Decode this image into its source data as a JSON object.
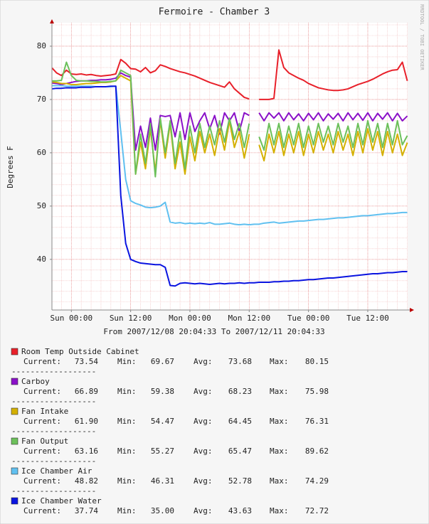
{
  "chart_data": {
    "type": "line",
    "title": "Fermoire - Chamber 3",
    "subtitle": "From 2007/12/08 20:04:33 To 2007/12/11 20:04:33",
    "y_label": "Degrees F",
    "watermark": "RRDTOOL / TOBI OETIKER",
    "separator": "------------------",
    "stat_labels": [
      "Current:",
      "Min:",
      "Avg:",
      "Max:"
    ],
    "grid": true,
    "xlim": [
      -3.93,
      68.07
    ],
    "ylim": [
      30.5,
      84.4
    ],
    "xticks": [
      {
        "value": 0,
        "label": "Sun 00:00"
      },
      {
        "value": 12,
        "label": "Sun 12:00"
      },
      {
        "value": 24,
        "label": "Mon 00:00"
      },
      {
        "value": 36,
        "label": "Mon 12:00"
      },
      {
        "value": 48,
        "label": "Tue 00:00"
      },
      {
        "value": 60,
        "label": "Tue 12:00"
      }
    ],
    "yticks": [
      40,
      50,
      60,
      70,
      80
    ],
    "x": [
      -3.9,
      -3,
      -2,
      -1,
      0,
      1,
      2,
      3,
      4,
      5,
      6,
      7,
      8,
      9,
      10,
      11,
      12,
      13,
      14,
      15,
      16,
      17,
      18,
      19,
      20,
      21,
      22,
      23,
      24,
      25,
      26,
      27,
      28,
      29,
      30,
      31,
      32,
      33,
      34,
      35,
      36,
      37,
      38,
      39,
      40,
      41,
      42,
      43,
      44,
      45,
      46,
      47,
      48,
      49,
      50,
      51,
      52,
      53,
      54,
      55,
      56,
      57,
      58,
      59,
      60,
      61,
      62,
      63,
      64,
      65,
      66,
      67,
      68
    ],
    "series": [
      {
        "name": "Room Temp Outside Cabinet",
        "color": "#e8202a",
        "stats": [
          "73.54",
          "69.67",
          "73.68",
          "80.15"
        ],
        "values": [
          75.9,
          75.0,
          74.5,
          75.5,
          74.8,
          74.7,
          74.8,
          74.6,
          74.7,
          74.5,
          74.4,
          74.5,
          74.6,
          74.8,
          77.5,
          76.8,
          75.8,
          75.7,
          75.2,
          76.0,
          75.0,
          75.4,
          76.5,
          76.2,
          75.8,
          75.5,
          75.2,
          75.0,
          74.7,
          74.4,
          74.0,
          73.6,
          73.2,
          72.9,
          72.6,
          72.3,
          73.3,
          72.0,
          71.2,
          70.4,
          70.1,
          null,
          70.0,
          70.0,
          70.0,
          70.2,
          79.3,
          76.0,
          75.0,
          74.5,
          74.0,
          73.6,
          73.0,
          72.6,
          72.2,
          72.0,
          71.8,
          71.7,
          71.7,
          71.8,
          72.0,
          72.4,
          72.8,
          73.1,
          73.4,
          73.8,
          74.3,
          74.8,
          75.2,
          75.5,
          75.6,
          77.0,
          73.5
        ]
      },
      {
        "name": "Carboy",
        "color": "#8a10c8",
        "stats": [
          "66.89",
          "59.38",
          "68.23",
          "75.98"
        ],
        "values": [
          73.1,
          73.0,
          72.8,
          73.0,
          73.2,
          73.4,
          73.5,
          73.5,
          73.6,
          73.6,
          73.7,
          73.7,
          73.8,
          74.0,
          75.0,
          74.5,
          74.2,
          60.5,
          65.0,
          61.0,
          66.5,
          60.5,
          67.0,
          66.8,
          67.0,
          63.0,
          67.5,
          62.5,
          67.5,
          64.0,
          66.0,
          67.5,
          64.5,
          67.0,
          63.5,
          67.5,
          66.0,
          67.5,
          64.0,
          67.5,
          67.0,
          null,
          67.5,
          66.0,
          67.5,
          66.5,
          67.5,
          66.0,
          67.5,
          66.2,
          67.3,
          66.0,
          67.4,
          66.2,
          67.5,
          66.0,
          67.3,
          66.3,
          67.4,
          66.0,
          67.5,
          66.2,
          67.4,
          66.1,
          67.5,
          66.0,
          67.4,
          66.3,
          67.5,
          66.0,
          67.4,
          66.0,
          66.9
        ]
      },
      {
        "name": "Fan Intake",
        "color": "#d4b000",
        "stats": [
          "61.90",
          "54.47",
          "64.45",
          "76.31"
        ],
        "values": [
          73.3,
          73.2,
          73.0,
          73.0,
          72.8,
          72.8,
          72.9,
          73.0,
          73.0,
          73.1,
          73.2,
          73.2,
          73.3,
          73.5,
          74.5,
          74.0,
          73.5,
          56.0,
          62.0,
          57.0,
          64.5,
          56.5,
          66.0,
          59.0,
          65.5,
          57.0,
          62.0,
          56.0,
          63.0,
          58.5,
          64.0,
          60.0,
          63.5,
          59.5,
          64.5,
          60.5,
          66.0,
          61.0,
          64.0,
          59.0,
          63.5,
          null,
          61.5,
          58.5,
          63.5,
          60.0,
          64.0,
          59.5,
          63.5,
          60.0,
          64.0,
          59.5,
          63.5,
          60.0,
          64.0,
          60.5,
          63.5,
          60.0,
          64.0,
          60.5,
          63.5,
          59.5,
          64.0,
          60.0,
          64.5,
          60.5,
          64.0,
          59.5,
          64.0,
          60.0,
          63.5,
          59.5,
          61.9
        ]
      },
      {
        "name": "Fan Output",
        "color": "#6cc05a",
        "stats": [
          "63.16",
          "55.27",
          "65.47",
          "89.62"
        ],
        "values": [
          73.5,
          73.5,
          73.6,
          77.0,
          74.5,
          73.6,
          73.5,
          73.5,
          73.4,
          73.4,
          73.3,
          73.3,
          73.4,
          73.5,
          75.5,
          75.0,
          74.5,
          56.0,
          63.5,
          58.0,
          65.5,
          55.5,
          66.5,
          60.0,
          66.0,
          58.0,
          64.0,
          57.0,
          65.0,
          60.0,
          65.5,
          61.0,
          65.0,
          61.5,
          66.0,
          62.0,
          66.5,
          62.5,
          65.5,
          61.0,
          65.5,
          null,
          63.0,
          60.5,
          65.5,
          61.5,
          65.5,
          61.0,
          65.0,
          61.5,
          65.5,
          61.0,
          65.0,
          61.5,
          65.5,
          62.0,
          65.0,
          61.5,
          65.5,
          62.0,
          65.0,
          61.0,
          65.5,
          61.5,
          66.0,
          62.0,
          65.5,
          61.0,
          65.5,
          61.5,
          66.0,
          61.5,
          63.2
        ]
      },
      {
        "name": "Ice Chamber Air",
        "color": "#60c0f0",
        "stats": [
          "48.82",
          "46.31",
          "52.78",
          "74.29"
        ],
        "values": [
          72.6,
          72.6,
          72.6,
          72.5,
          72.5,
          72.5,
          72.5,
          72.5,
          72.5,
          72.4,
          72.4,
          72.4,
          72.4,
          72.5,
          64.0,
          55.0,
          51.0,
          50.5,
          50.2,
          49.8,
          49.7,
          49.8,
          50.0,
          50.7,
          47.0,
          46.8,
          46.9,
          46.7,
          46.8,
          46.7,
          46.8,
          46.7,
          46.9,
          46.6,
          46.6,
          46.7,
          46.8,
          46.6,
          46.5,
          46.6,
          46.5,
          46.6,
          46.6,
          46.8,
          46.9,
          47.0,
          46.8,
          46.9,
          47.0,
          47.1,
          47.2,
          47.2,
          47.3,
          47.4,
          47.5,
          47.5,
          47.6,
          47.7,
          47.8,
          47.8,
          47.9,
          48.0,
          48.1,
          48.2,
          48.2,
          48.3,
          48.4,
          48.5,
          48.6,
          48.6,
          48.7,
          48.8,
          48.8
        ]
      },
      {
        "name": "Ice Chamber Water",
        "color": "#0a14e0",
        "stats": [
          "37.74",
          "35.00",
          "43.63",
          "72.72"
        ],
        "values": [
          72.0,
          72.1,
          72.1,
          72.2,
          72.2,
          72.2,
          72.3,
          72.3,
          72.3,
          72.4,
          72.4,
          72.4,
          72.5,
          72.5,
          52.0,
          43.0,
          40.0,
          39.6,
          39.3,
          39.2,
          39.1,
          39.0,
          39.0,
          38.5,
          35.1,
          35.0,
          35.5,
          35.6,
          35.5,
          35.4,
          35.5,
          35.4,
          35.3,
          35.4,
          35.5,
          35.4,
          35.5,
          35.5,
          35.6,
          35.5,
          35.6,
          35.6,
          35.7,
          35.7,
          35.7,
          35.8,
          35.8,
          35.9,
          35.9,
          36.0,
          36.0,
          36.1,
          36.2,
          36.2,
          36.3,
          36.4,
          36.5,
          36.5,
          36.6,
          36.7,
          36.8,
          36.9,
          37.0,
          37.1,
          37.2,
          37.3,
          37.3,
          37.4,
          37.5,
          37.5,
          37.6,
          37.7,
          37.7
        ]
      }
    ]
  }
}
